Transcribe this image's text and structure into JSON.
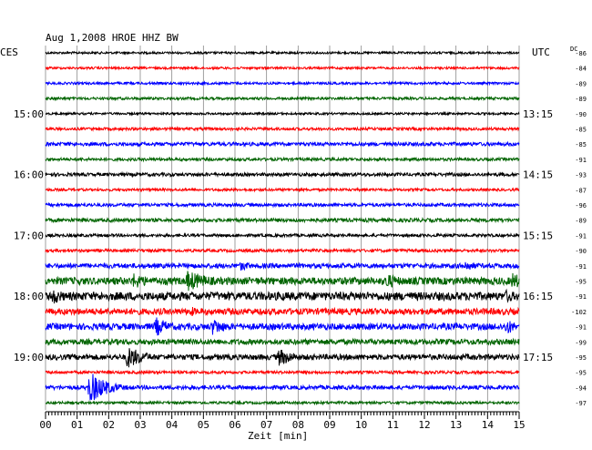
{
  "chart_data": {
    "type": "line",
    "title": "Aug 1,2008   HROE HHZ BW",
    "left_zone_label": "CES",
    "right_zone_label": "UTC",
    "dc_label": "DC",
    "xlabel": "Zeit [min]",
    "x_ticks": [
      "00",
      "01",
      "02",
      "03",
      "04",
      "05",
      "06",
      "07",
      "08",
      "09",
      "10",
      "11",
      "12",
      "13",
      "14",
      "15"
    ],
    "xlim": [
      0,
      15
    ],
    "left_hour_labels": [
      {
        "row": 4,
        "label": "15:00"
      },
      {
        "row": 8,
        "label": "16:00"
      },
      {
        "row": 12,
        "label": "17:00"
      },
      {
        "row": 16,
        "label": "18:00"
      },
      {
        "row": 20,
        "label": "19:00"
      }
    ],
    "right_hour_labels": [
      {
        "row": 4,
        "label": "13:15"
      },
      {
        "row": 8,
        "label": "14:15"
      },
      {
        "row": 12,
        "label": "15:15"
      },
      {
        "row": 16,
        "label": "16:15"
      },
      {
        "row": 20,
        "label": "17:15"
      }
    ],
    "trace_colors": [
      "#000000",
      "#ff0000",
      "#0000ff",
      "#006400"
    ],
    "rows": [
      {
        "dc": "-86",
        "amp": 1.2
      },
      {
        "dc": "-84",
        "amp": 1.2
      },
      {
        "dc": "-89",
        "amp": 1.3
      },
      {
        "dc": "-89",
        "amp": 1.4
      },
      {
        "dc": "-90",
        "amp": 1.2
      },
      {
        "dc": "-85",
        "amp": 1.5
      },
      {
        "dc": "-85",
        "amp": 2.0
      },
      {
        "dc": "-91",
        "amp": 1.6
      },
      {
        "dc": "-93",
        "amp": 1.8
      },
      {
        "dc": "-87",
        "amp": 1.4
      },
      {
        "dc": "-96",
        "amp": 1.8
      },
      {
        "dc": "-89",
        "amp": 2.0
      },
      {
        "dc": "-91",
        "amp": 1.6
      },
      {
        "dc": "-90",
        "amp": 1.6
      },
      {
        "dc": "-91",
        "amp": 2.6
      },
      {
        "dc": "-95",
        "amp": 4.0
      },
      {
        "dc": "-91",
        "amp": 4.5
      },
      {
        "dc": "-102",
        "amp": 3.5
      },
      {
        "dc": "-91",
        "amp": 3.5
      },
      {
        "dc": "-99",
        "amp": 3.0
      },
      {
        "dc": "-95",
        "amp": 3.0
      },
      {
        "dc": "-95",
        "amp": 1.6
      },
      {
        "dc": "-94",
        "amp": 2.2
      },
      {
        "dc": "-97",
        "amp": 1.4
      }
    ],
    "events": [
      {
        "row": 14,
        "t": 6.2,
        "amp": 6,
        "dur": 0.4
      },
      {
        "row": 14,
        "t": 13.3,
        "amp": 6,
        "dur": 0.5
      },
      {
        "row": 15,
        "t": 2.8,
        "amp": 9,
        "dur": 0.6
      },
      {
        "row": 15,
        "t": 4.5,
        "amp": 12,
        "dur": 0.8
      },
      {
        "row": 15,
        "t": 10.8,
        "amp": 9,
        "dur": 0.6
      },
      {
        "row": 15,
        "t": 14.8,
        "amp": 10,
        "dur": 0.4
      },
      {
        "row": 16,
        "t": 0.2,
        "amp": 10,
        "dur": 0.5
      },
      {
        "row": 16,
        "t": 7.4,
        "amp": 6,
        "dur": 0.4
      },
      {
        "row": 16,
        "t": 14.6,
        "amp": 8,
        "dur": 0.4
      },
      {
        "row": 17,
        "t": 4.6,
        "amp": 6,
        "dur": 0.3
      },
      {
        "row": 18,
        "t": 3.5,
        "amp": 11,
        "dur": 0.5
      },
      {
        "row": 18,
        "t": 5.3,
        "amp": 10,
        "dur": 0.5
      },
      {
        "row": 18,
        "t": 14.6,
        "amp": 9,
        "dur": 0.4
      },
      {
        "row": 20,
        "t": 2.6,
        "amp": 13,
        "dur": 0.6
      },
      {
        "row": 20,
        "t": 7.4,
        "amp": 10,
        "dur": 0.6
      },
      {
        "row": 22,
        "t": 1.4,
        "amp": 18,
        "dur": 0.6
      }
    ]
  }
}
